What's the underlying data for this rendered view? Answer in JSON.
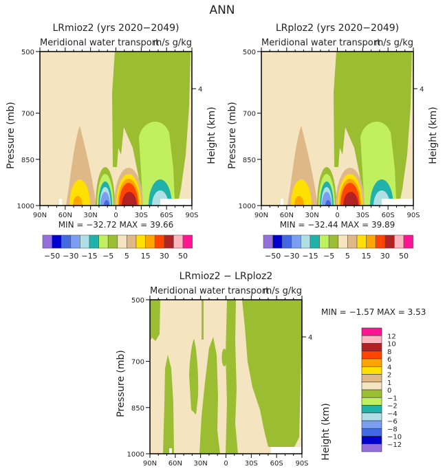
{
  "figure_title": "ANN",
  "colors": {
    "mediumpurple": "#9370db",
    "mediumblue": "#0000cd",
    "royalblue": "#4169e1",
    "cornflower": "#7b9ef0",
    "powderblue": "#b0e0e6",
    "teal": "#20b2aa",
    "lightgreen": "#c0f060",
    "yellowgreen": "#9abd32",
    "wheat": "#f5e4c0",
    "burlywood": "#deb887",
    "gold": "#ffe000",
    "orange": "#ffa500",
    "orangered": "#ff4500",
    "firebrick": "#b22222",
    "pink": "#ffb6c1",
    "deeppink": "#ff1493"
  },
  "chart_data": [
    {
      "type": "heatmap",
      "title": "LRmioz2 (yrs 2020−2049)",
      "subtitle_left": "Meridional water transport",
      "subtitle_right": "m/s g/kg",
      "ylabel": "Pressure (mb)",
      "ylabel_right": "Height (km)",
      "x_ticks": [
        "90N",
        "60N",
        "30N",
        "0",
        "30S",
        "60S",
        "90S"
      ],
      "y_ticks": [
        500,
        700,
        850,
        1000
      ],
      "y_right_ticks": [
        "4"
      ],
      "ylim": [
        1000,
        500
      ],
      "xlim": [
        "90N",
        "90S"
      ],
      "min_label": "MIN =",
      "min_value": "−32.72",
      "max_label": "MAX =",
      "max_value": "39.66",
      "colorbar_labels": [
        "−50",
        "−30",
        "−15",
        "−5",
        "5",
        "15",
        "30",
        "50"
      ]
    },
    {
      "type": "heatmap",
      "title": "LRploz2 (yrs 2020−2049)",
      "subtitle_left": "Meridional water transport",
      "subtitle_right": "m/s g/kg",
      "ylabel": "Pressure (mb)",
      "ylabel_right": "Height (km)",
      "x_ticks": [
        "90N",
        "60N",
        "30N",
        "0",
        "30S",
        "60S",
        "90S"
      ],
      "y_ticks": [
        500,
        700,
        850,
        1000
      ],
      "y_right_ticks": [
        "4"
      ],
      "ylim": [
        1000,
        500
      ],
      "xlim": [
        "90N",
        "90S"
      ],
      "min_label": "MIN =",
      "min_value": "−32.44",
      "max_label": "MAX =",
      "max_value": "39.89",
      "colorbar_labels": [
        "−50",
        "−30",
        "−15",
        "−5",
        "5",
        "15",
        "30",
        "50"
      ]
    },
    {
      "type": "heatmap",
      "title": "LRmioz2 − LRploz2",
      "subtitle_left": "Meridional water transport",
      "subtitle_right": "m/s g/kg",
      "ylabel": "Pressure (mb)",
      "ylabel_right": "Height (km)",
      "x_ticks": [
        "90N",
        "60N",
        "30N",
        "0",
        "30S",
        "60S",
        "90S"
      ],
      "y_ticks": [
        500,
        700,
        850,
        1000
      ],
      "y_right_ticks": [
        "4"
      ],
      "ylim": [
        1000,
        500
      ],
      "xlim": [
        "90N",
        "90S"
      ],
      "min_label": "MIN =",
      "min_value": "−1.57",
      "max_label": "MAX =",
      "max_value": "3.53",
      "colorbar_labels": [
        "12",
        "10",
        "8",
        "6",
        "4",
        "2",
        "1",
        "0",
        "−1",
        "−2",
        "−4",
        "−6",
        "−8",
        "−10",
        "−12"
      ]
    }
  ]
}
